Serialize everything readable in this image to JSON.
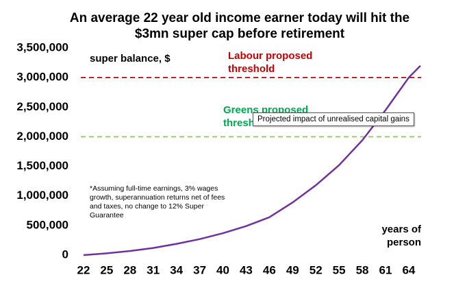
{
  "chart_data": {
    "type": "line",
    "title": "An average 22 year old income earner today will hit the $3mn super cap before retirement",
    "y_label": "super balance, $",
    "x_label": "years of person",
    "note": "*Assuming full-time earnings, 3% wages growth, superannuation returns net of fees and taxes, no change to 12% Super Guarantee",
    "x": [
      22,
      25,
      28,
      31,
      34,
      37,
      40,
      43,
      46,
      49,
      52,
      55,
      58,
      61,
      64,
      65.5
    ],
    "series": [
      {
        "name": "super balance",
        "color": "#7030a0",
        "values": [
          0,
          30000,
          70000,
          120000,
          190000,
          270000,
          370000,
          490000,
          640000,
          890000,
          1180000,
          1520000,
          1940000,
          2450000,
          3000000,
          3200000
        ]
      }
    ],
    "reference_lines": [
      {
        "value": 3000000,
        "color": "#c00000",
        "label": "Labour proposed threshold"
      },
      {
        "value": 2000000,
        "color": "#92d050",
        "label": "Greens proposed threshold",
        "label_color": "#00a650"
      }
    ],
    "xlim": [
      21.65,
      65.6
    ],
    "xticks": [
      22,
      25,
      28,
      31,
      34,
      37,
      40,
      43,
      46,
      49,
      52,
      55,
      58,
      61,
      64
    ],
    "ylim": [
      0,
      3500000
    ],
    "yticks": [
      0,
      {
        "value": 500000,
        "label": "500,000"
      },
      {
        "value": 1000000,
        "label": "1,000,000"
      },
      {
        "value": 1500000,
        "label": "1,500,000"
      },
      {
        "value": 2000000,
        "label": "2,000,000"
      },
      {
        "value": 2500000,
        "label": "2,500,000"
      },
      {
        "value": 3000000,
        "label": "3,000,000"
      },
      {
        "value": 3500000,
        "label": "3,500,000"
      }
    ]
  },
  "tooltip": {
    "text": "Projected impact of unrealised capital gains"
  }
}
